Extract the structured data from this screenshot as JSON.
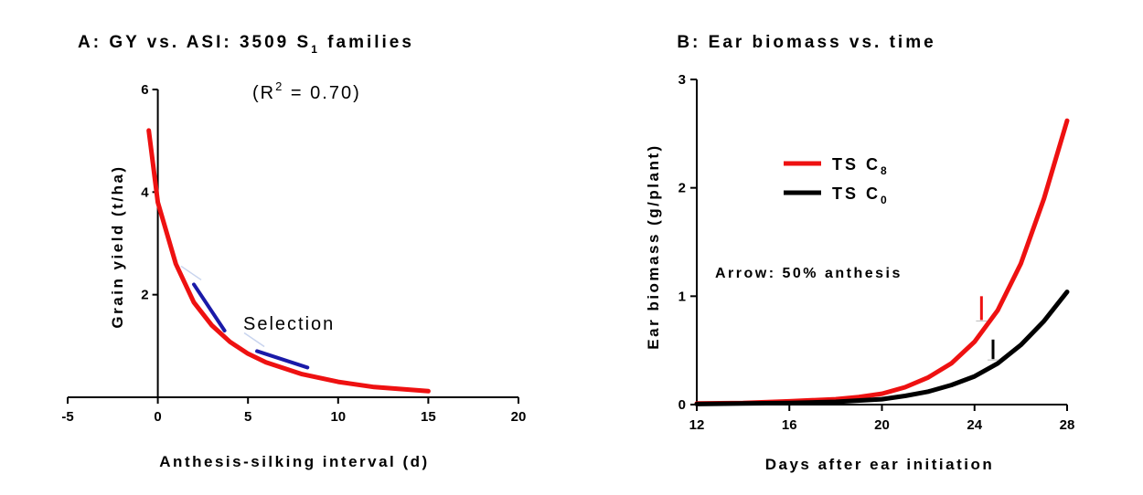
{
  "chart_data": [
    {
      "panel": "A",
      "type": "line",
      "title": {
        "main": "A:  GY vs. ASI:  3509 S",
        "sub": "1",
        "tail": " families"
      },
      "xlabel": "Anthesis-silking interval (d)",
      "ylabel": "Grain yield (t/ha)",
      "xlim": [
        -5,
        20
      ],
      "ylim": [
        0,
        6
      ],
      "xticks": [
        -5,
        0,
        5,
        10,
        15,
        20
      ],
      "yticks": [
        2,
        4,
        6
      ],
      "annotation": {
        "pre": "(R",
        "sup": "2",
        "post": " = 0.70)"
      },
      "selection_label": "Selection",
      "series": [
        {
          "color": "#ee1111",
          "x": [
            -0.5,
            0,
            1,
            2,
            3,
            4,
            5,
            6,
            8,
            10,
            12,
            15
          ],
          "y": [
            5.2,
            3.8,
            2.6,
            1.85,
            1.4,
            1.08,
            0.85,
            0.68,
            0.45,
            0.3,
            0.2,
            0.12
          ]
        }
      ],
      "selection_arrows": [
        {
          "color": "#1a1aa8",
          "x": [
            2,
            3.7
          ],
          "y": [
            2.2,
            1.3
          ]
        },
        {
          "color": "#1a1aa8",
          "x": [
            5.5,
            8.3
          ],
          "y": [
            0.9,
            0.58
          ]
        }
      ],
      "axis_color": "#000000"
    },
    {
      "panel": "B",
      "type": "line",
      "title": "B:  Ear biomass vs. time",
      "xlabel": "Days after ear initiation",
      "ylabel": "Ear biomass (g/plant)",
      "xlim": [
        12,
        28
      ],
      "ylim": [
        0,
        3
      ],
      "xticks": [
        12,
        16,
        20,
        24,
        28
      ],
      "yticks": [
        0,
        1,
        2,
        3
      ],
      "annotation": "Arrow: 50% anthesis",
      "legend_position": "upper-left",
      "series": [
        {
          "name": "TS C",
          "sub": "8",
          "color": "#ee1111",
          "x": [
            12,
            14,
            16,
            18,
            19,
            20,
            21,
            22,
            23,
            24,
            25,
            26,
            27,
            28
          ],
          "y": [
            0.01,
            0.015,
            0.03,
            0.05,
            0.07,
            0.1,
            0.16,
            0.25,
            0.38,
            0.58,
            0.87,
            1.3,
            1.9,
            2.62
          ]
        },
        {
          "name": "TS C",
          "sub": "0",
          "color": "#000000",
          "x": [
            12,
            14,
            16,
            18,
            20,
            21,
            22,
            23,
            24,
            25,
            26,
            27,
            28
          ],
          "y": [
            0.005,
            0.01,
            0.015,
            0.025,
            0.05,
            0.08,
            0.12,
            0.18,
            0.26,
            0.38,
            0.55,
            0.77,
            1.04
          ]
        }
      ],
      "anthesis_markers": [
        {
          "series": "TS C8",
          "x": 24.3,
          "y_from": 1.0,
          "y_to": 0.78,
          "color": "#ee1111"
        },
        {
          "series": "TS C0",
          "x": 24.8,
          "y_from": 0.6,
          "y_to": 0.42,
          "color": "#000000"
        }
      ],
      "axis_color": "#000000"
    }
  ]
}
